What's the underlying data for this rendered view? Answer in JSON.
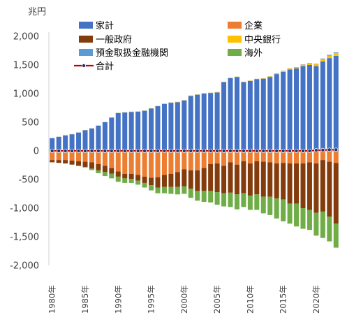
{
  "chart_data": {
    "type": "bar",
    "stacked": true,
    "ylabel": "兆円",
    "ylim": [
      -2000,
      2000
    ],
    "yticks": [
      "2,000",
      "1,500",
      "1,000",
      "500",
      "0",
      "-500",
      "-1,000",
      "-1,500",
      "-2,000"
    ],
    "x": [
      1980,
      1981,
      1982,
      1983,
      1984,
      1985,
      1986,
      1987,
      1988,
      1989,
      1990,
      1991,
      1992,
      1993,
      1994,
      1995,
      1996,
      1997,
      1998,
      1999,
      2000,
      2001,
      2002,
      2003,
      2004,
      2005,
      2006,
      2007,
      2008,
      2009,
      2010,
      2011,
      2012,
      2013,
      2014,
      2015,
      2016,
      2017,
      2018,
      2019,
      2020,
      2021,
      2022,
      2023
    ],
    "xtick_labels": [
      "1980年",
      "1985年",
      "1990年",
      "1995年",
      "2000年",
      "2005年",
      "2010年",
      "2015年",
      "2020年"
    ],
    "legend_placement": "top",
    "colors": {
      "household": "#4472c4",
      "corporate": "#ed7d31",
      "government": "#843c0c",
      "central_bank": "#ffc000",
      "depository": "#5b9bd5",
      "overseas": "#70ad47",
      "total": "#c00000"
    },
    "series": [
      {
        "key": "household",
        "name": "家計",
        "values": [
          220,
          245,
          270,
          290,
          320,
          360,
          390,
          440,
          500,
          580,
          660,
          670,
          680,
          685,
          700,
          740,
          780,
          820,
          840,
          850,
          880,
          960,
          980,
          1000,
          1010,
          1020,
          1200,
          1270,
          1290,
          1200,
          1220,
          1250,
          1260,
          1290,
          1340,
          1380,
          1420,
          1440,
          1480,
          1500,
          1480,
          1560,
          1620,
          1660
        ]
      },
      {
        "key": "corporate",
        "name": "企業",
        "values": [
          -160,
          -160,
          -160,
          -170,
          -180,
          -190,
          -200,
          -230,
          -260,
          -300,
          -360,
          -400,
          -400,
          -420,
          -450,
          -470,
          -460,
          -420,
          -400,
          -370,
          -320,
          -340,
          -340,
          -300,
          -230,
          -220,
          -260,
          -200,
          -240,
          -180,
          -220,
          -180,
          -190,
          -200,
          -220,
          -210,
          -220,
          -220,
          -220,
          -200,
          -220,
          -160,
          -190,
          -210
        ]
      },
      {
        "key": "government",
        "name": "一般政府",
        "values": [
          -40,
          -50,
          -60,
          -70,
          -80,
          -90,
          -110,
          -110,
          -110,
          -100,
          -90,
          -80,
          -90,
          -100,
          -110,
          -130,
          -180,
          -210,
          -230,
          -260,
          -300,
          -320,
          -360,
          -400,
          -470,
          -500,
          -480,
          -530,
          -520,
          -560,
          -560,
          -580,
          -610,
          -600,
          -610,
          -640,
          -700,
          -700,
          -780,
          -830,
          -860,
          -900,
          -960,
          -1060
        ]
      },
      {
        "key": "central_bank",
        "name": "中央銀行",
        "values": [
          2,
          2,
          2,
          2,
          2,
          2,
          3,
          3,
          3,
          3,
          3,
          3,
          3,
          3,
          3,
          3,
          3,
          3,
          4,
          4,
          4,
          4,
          5,
          5,
          5,
          5,
          5,
          6,
          6,
          6,
          6,
          7,
          7,
          10,
          12,
          15,
          18,
          20,
          25,
          28,
          32,
          40,
          45,
          50
        ]
      },
      {
        "key": "depository",
        "name": "預金取扱金融機関",
        "values": [
          2,
          2,
          2,
          2,
          2,
          2,
          2,
          2,
          2,
          2,
          2,
          2,
          2,
          2,
          2,
          2,
          2,
          2,
          2,
          2,
          2,
          2,
          2,
          2,
          2,
          2,
          2,
          2,
          2,
          2,
          2,
          2,
          2,
          3,
          3,
          3,
          3,
          3,
          5,
          6,
          8,
          12,
          12,
          12
        ]
      },
      {
        "key": "overseas",
        "name": "海外",
        "values": [
          0,
          0,
          0,
          0,
          -5,
          -10,
          -25,
          -50,
          -70,
          -80,
          -90,
          -80,
          -70,
          -70,
          -80,
          -90,
          -100,
          -110,
          -120,
          -130,
          -130,
          -160,
          -170,
          -190,
          -200,
          -220,
          -230,
          -250,
          -260,
          -240,
          -250,
          -270,
          -290,
          -320,
          -350,
          -380,
          -350,
          -400,
          -360,
          -350,
          -400,
          -460,
          -430,
          -420
        ]
      },
      {
        "key": "total",
        "name": "合計",
        "kind": "line",
        "values": [
          0,
          0,
          0,
          0,
          0,
          0,
          0,
          0,
          0,
          0,
          0,
          0,
          0,
          0,
          0,
          0,
          0,
          0,
          0,
          0,
          0,
          0,
          0,
          0,
          0,
          0,
          0,
          0,
          0,
          0,
          0,
          0,
          0,
          0,
          0,
          0,
          0,
          0,
          0,
          0,
          10,
          15,
          20,
          20
        ]
      }
    ]
  }
}
